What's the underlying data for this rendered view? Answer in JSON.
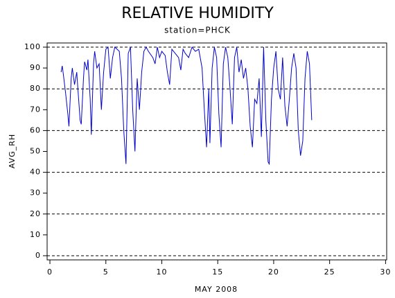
{
  "chart_data": {
    "type": "line",
    "title": "RELATIVE HUMIDITY",
    "subtitle": "station=PHCK",
    "xlabel": "MAY 2008",
    "ylabel": "AVG_RH",
    "xlim": [
      -0.25,
      30.1
    ],
    "ylim": [
      -2,
      102
    ],
    "xticks": [
      0,
      5,
      10,
      15,
      20,
      25,
      30
    ],
    "yticks": [
      0,
      10,
      20,
      30,
      40,
      50,
      60,
      70,
      80,
      90,
      100
    ],
    "grid_lines": [
      0,
      20,
      40,
      60,
      80,
      100
    ],
    "series": [
      {
        "name": "AVG_RH",
        "color": "#0000cc",
        "x": [
          1.0,
          1.1,
          1.2,
          1.4,
          1.6,
          1.7,
          1.9,
          2.0,
          2.2,
          2.4,
          2.5,
          2.7,
          2.8,
          3.0,
          3.1,
          3.3,
          3.4,
          3.6,
          3.7,
          3.9,
          4.0,
          4.2,
          4.4,
          4.6,
          4.8,
          5.0,
          5.2,
          5.4,
          5.6,
          5.8,
          6.0,
          6.2,
          6.4,
          6.6,
          6.8,
          7.0,
          7.2,
          7.4,
          7.6,
          7.8,
          8.0,
          8.2,
          8.4,
          8.6,
          8.8,
          9.2,
          9.4,
          9.6,
          9.8,
          10.0,
          10.3,
          10.5,
          10.7,
          10.9,
          11.2,
          11.5,
          11.7,
          11.9,
          12.1,
          12.4,
          12.7,
          13.0,
          13.3,
          13.6,
          13.8,
          14.0,
          14.2,
          14.3,
          14.5,
          14.7,
          14.9,
          15.1,
          15.3,
          15.5,
          15.7,
          15.9,
          16.1,
          16.3,
          16.5,
          16.7,
          16.9,
          17.1,
          17.3,
          17.5,
          17.7,
          17.9,
          18.1,
          18.3,
          18.5,
          18.7,
          18.9,
          19.1,
          19.3,
          19.5,
          19.6,
          19.8,
          20.0,
          20.2,
          20.4,
          20.6,
          20.8,
          21.0,
          21.2,
          21.4,
          21.6,
          21.8,
          22.0,
          22.2,
          22.4,
          22.6,
          22.8,
          23.0,
          23.2,
          23.4
        ],
        "values": [
          88,
          91,
          87,
          78,
          68,
          62,
          85,
          90,
          82,
          88,
          80,
          65,
          63,
          85,
          93,
          89,
          94,
          75,
          58,
          92,
          98,
          90,
          92,
          70,
          88,
          99,
          100,
          85,
          95,
          100,
          99,
          98,
          85,
          60,
          44,
          97,
          100,
          70,
          50,
          85,
          70,
          88,
          98,
          100,
          98,
          95,
          92,
          100,
          95,
          98,
          96,
          88,
          82,
          99,
          97,
          95,
          89,
          99,
          97,
          95,
          100,
          98,
          99,
          90,
          70,
          52,
          80,
          54,
          90,
          100,
          95,
          68,
          52,
          92,
          100,
          95,
          80,
          63,
          95,
          100,
          88,
          94,
          85,
          90,
          80,
          62,
          52,
          75,
          73,
          85,
          57,
          100,
          65,
          45,
          44,
          75,
          90,
          98,
          80,
          75,
          95,
          72,
          62,
          75,
          90,
          97,
          90,
          60,
          48,
          55,
          85,
          98,
          92,
          65
        ]
      }
    ]
  }
}
